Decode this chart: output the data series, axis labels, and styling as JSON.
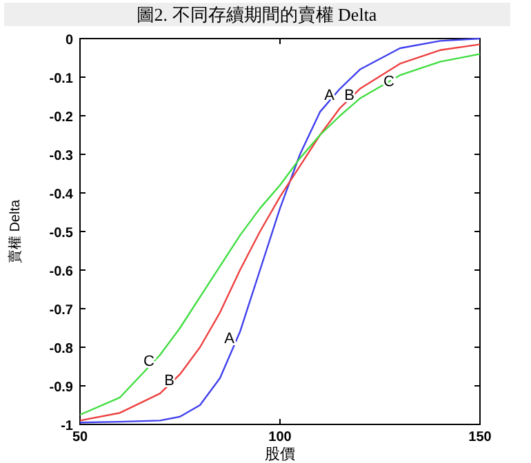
{
  "chart_data": {
    "type": "line",
    "title": "圖2. 不同存續期間的賣權 Delta",
    "xlabel": "股價",
    "ylabel": "賣權 Delta",
    "x": [
      50,
      60,
      70,
      75,
      80,
      85,
      90,
      95,
      100,
      105,
      110,
      115,
      120,
      130,
      140,
      150
    ],
    "series": [
      {
        "color": "#4040ee",
        "values": [
          -0.995,
          -0.993,
          -0.99,
          -0.98,
          -0.95,
          -0.88,
          -0.76,
          -0.6,
          -0.44,
          -0.3,
          -0.19,
          -0.13,
          -0.08,
          -0.025,
          -0.006,
          0
        ]
      },
      {
        "color": "#ee4040",
        "values": [
          -0.99,
          -0.97,
          -0.92,
          -0.87,
          -0.8,
          -0.71,
          -0.6,
          -0.5,
          -0.41,
          -0.33,
          -0.25,
          -0.18,
          -0.13,
          -0.065,
          -0.03,
          -0.015
        ]
      },
      {
        "color": "#40dd40",
        "values": [
          -0.975,
          -0.93,
          -0.82,
          -0.75,
          -0.67,
          -0.59,
          -0.51,
          -0.44,
          -0.38,
          -0.31,
          -0.25,
          -0.2,
          -0.155,
          -0.095,
          -0.06,
          -0.04
        ]
      }
    ],
    "annotations": [
      {
        "text": "A",
        "x": 115,
        "y": -0.13
      },
      {
        "text": "B",
        "x": 120,
        "y": -0.13
      },
      {
        "text": "C",
        "x": 130,
        "y": -0.095
      },
      {
        "text": "C",
        "x": 70,
        "y": -0.82
      },
      {
        "text": "B",
        "x": 75,
        "y": -0.87
      },
      {
        "text": "A",
        "x": 90,
        "y": -0.76
      }
    ],
    "xlim": [
      50,
      150
    ],
    "ylim": [
      -1,
      0
    ],
    "xticks": [
      50,
      100,
      150
    ],
    "yticks": [
      -1,
      -0.9,
      -0.8,
      -0.7,
      -0.6,
      -0.5,
      -0.4,
      -0.3,
      -0.2,
      -0.1,
      0
    ],
    "grid": false
  }
}
